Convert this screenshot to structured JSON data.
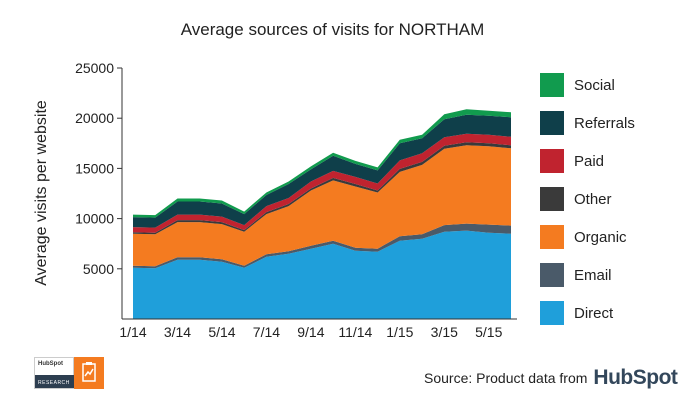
{
  "chart_data": {
    "type": "area",
    "stacked": true,
    "title": "Average sources of visits for NORTHAM",
    "ylabel": "Average visits per website",
    "xlabel": "",
    "ylim": [
      0,
      25000
    ],
    "yticks": [
      "25000",
      "20000",
      "15000",
      "10000",
      "5000"
    ],
    "ytick_values": [
      25000,
      20000,
      15000,
      10000,
      5000
    ],
    "x": [
      "1/14",
      "2/14",
      "3/14",
      "4/14",
      "5/14",
      "6/14",
      "7/14",
      "8/14",
      "9/14",
      "10/14",
      "11/14",
      "12/14",
      "1/15",
      "2/15",
      "3/15",
      "4/15",
      "5/15",
      "6/15"
    ],
    "xtick_labels": [
      "1/14",
      "3/14",
      "5/14",
      "7/14",
      "9/14",
      "11/14",
      "1/15",
      "3/15",
      "5/15"
    ],
    "series": [
      {
        "name": "Direct",
        "color": "#1f9fda",
        "values": [
          5100,
          5050,
          5900,
          5900,
          5700,
          5100,
          6200,
          6500,
          7000,
          7500,
          6800,
          6700,
          7800,
          8000,
          8700,
          8800,
          8600,
          8500
        ]
      },
      {
        "name": "Email",
        "color": "#4a5a69",
        "values": [
          200,
          200,
          250,
          250,
          250,
          200,
          250,
          250,
          300,
          300,
          300,
          300,
          450,
          450,
          650,
          700,
          800,
          800
        ]
      },
      {
        "name": "Organic",
        "color": "#f47b20",
        "values": [
          3200,
          3200,
          3500,
          3500,
          3500,
          3400,
          4000,
          4500,
          5500,
          6000,
          6100,
          5600,
          6400,
          6900,
          7600,
          7800,
          7800,
          7700
        ]
      },
      {
        "name": "Other",
        "color": "#3a3a3a",
        "values": [
          150,
          150,
          200,
          200,
          200,
          150,
          200,
          200,
          200,
          250,
          250,
          200,
          300,
          300,
          300,
          300,
          300,
          300
        ]
      },
      {
        "name": "Paid",
        "color": "#c0232f",
        "values": [
          500,
          500,
          550,
          550,
          550,
          500,
          600,
          600,
          700,
          700,
          700,
          700,
          850,
          850,
          850,
          850,
          850,
          850
        ]
      },
      {
        "name": "Referrals",
        "color": "#0f3f4a",
        "values": [
          1000,
          1000,
          1300,
          1300,
          1300,
          1100,
          1100,
          1400,
          1200,
          1500,
          1300,
          1300,
          1700,
          1500,
          1800,
          1900,
          1900,
          1950
        ]
      },
      {
        "name": "Social",
        "color": "#119b4e",
        "values": [
          250,
          250,
          300,
          300,
          300,
          250,
          250,
          250,
          300,
          300,
          300,
          300,
          350,
          350,
          500,
          550,
          500,
          500
        ]
      }
    ],
    "legend": [
      {
        "name": "Social",
        "color": "#119b4e"
      },
      {
        "name": "Referrals",
        "color": "#0f3f4a"
      },
      {
        "name": "Paid",
        "color": "#c0232f"
      },
      {
        "name": "Other",
        "color": "#3a3a3a"
      },
      {
        "name": "Organic",
        "color": "#f47b20"
      },
      {
        "name": "Email",
        "color": "#4a5a69"
      },
      {
        "name": "Direct",
        "color": "#1f9fda"
      }
    ],
    "legend_position": "right"
  },
  "footer": {
    "source_text": "Source: Product data from",
    "brand": "HubSpot",
    "badge_logo": "HubSpot",
    "badge_label": "RESEARCH"
  },
  "colors": {
    "badge_accent": "#f47b20",
    "brand_dark": "#33475b"
  }
}
